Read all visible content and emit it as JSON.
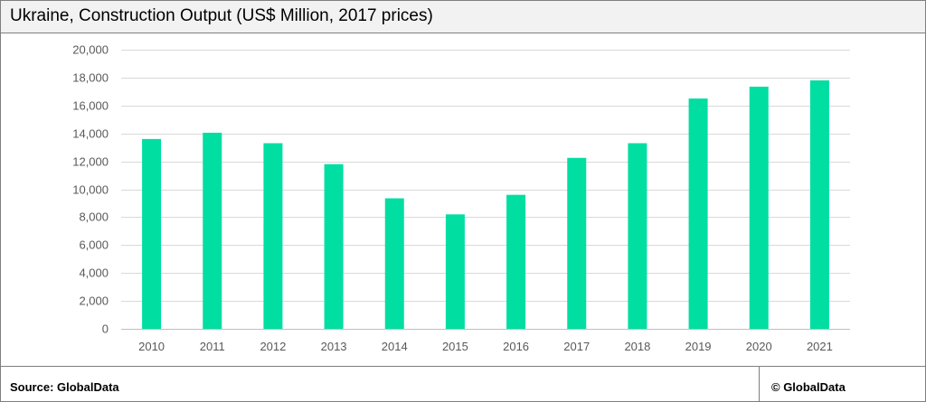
{
  "chart_data": {
    "type": "bar",
    "title": "Ukraine, Construction Output (US$ Million, 2017 prices)",
    "xlabel": "",
    "ylabel": "",
    "categories": [
      "2010",
      "2011",
      "2012",
      "2013",
      "2014",
      "2015",
      "2016",
      "2017",
      "2018",
      "2019",
      "2020",
      "2021"
    ],
    "values": [
      13600,
      14050,
      13300,
      11800,
      9350,
      8200,
      9600,
      12250,
      13300,
      16500,
      17350,
      17800
    ],
    "ylim": [
      0,
      20000
    ],
    "yticks": [
      0,
      2000,
      4000,
      6000,
      8000,
      10000,
      12000,
      14000,
      16000,
      18000,
      20000
    ],
    "ytick_labels": [
      "0",
      "2,000",
      "4,000",
      "6,000",
      "8,000",
      "10,000",
      "12,000",
      "14,000",
      "16,000",
      "18,000",
      "20,000"
    ],
    "grid": true,
    "legend": "none",
    "bar_color": "#00dea2",
    "grid_color": "#d9d9d9",
    "axis_color": "#bfbfbf",
    "tick_label_color": "#595959"
  },
  "footer": {
    "source": "Source:  GlobalData",
    "copyright": "© GlobalData"
  }
}
